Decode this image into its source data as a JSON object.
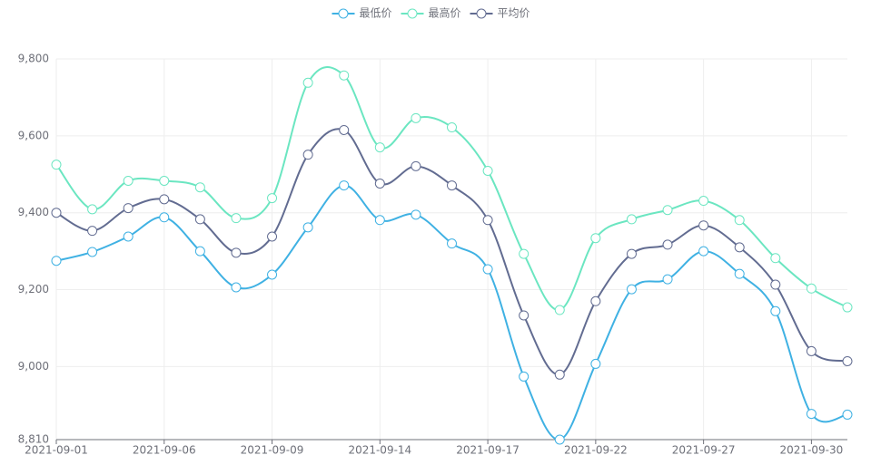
{
  "chart_data": {
    "type": "line",
    "categories": [
      "2021-09-01",
      null,
      null,
      "2021-09-06",
      null,
      null,
      "2021-09-09",
      null,
      null,
      "2021-09-14",
      null,
      null,
      "2021-09-17",
      null,
      null,
      "2021-09-22",
      null,
      null,
      "2021-09-27",
      null,
      null,
      "2021-09-30",
      null
    ],
    "series": [
      {
        "name": "最低价",
        "color": "#3fb1e3",
        "values": [
          9275,
          9298,
          9338,
          9388,
          9300,
          9206,
          9239,
          9362,
          9471,
          9381,
          9395,
          9320,
          9253,
          8974,
          8810,
          9007,
          9201,
          9227,
          9300,
          9241,
          9144,
          8877,
          8875
        ]
      },
      {
        "name": "最高价",
        "color": "#6be6c1",
        "values": [
          9525,
          9409,
          9483,
          9483,
          9466,
          9386,
          9438,
          9738,
          9757,
          9570,
          9646,
          9622,
          9509,
          9293,
          9147,
          9334,
          9383,
          9407,
          9431,
          9381,
          9282,
          9203,
          9154
        ]
      },
      {
        "name": "平均价",
        "color": "#626c91",
        "values": [
          9400,
          9353,
          9412,
          9435,
          9383,
          9296,
          9338,
          9551,
          9615,
          9476,
          9521,
          9471,
          9381,
          9133,
          8979,
          9170,
          9293,
          9317,
          9367,
          9310,
          9213,
          9040,
          9014
        ]
      }
    ],
    "ylim": [
      8810,
      9800
    ],
    "yticks": [
      {
        "value": 8810,
        "label": "8,810"
      },
      {
        "value": 9000,
        "label": "9,000"
      },
      {
        "value": 9200,
        "label": "9,200"
      },
      {
        "value": 9400,
        "label": "9,400"
      },
      {
        "value": 9600,
        "label": "9,600"
      },
      {
        "value": 9800,
        "label": "9,800"
      }
    ],
    "grid": true,
    "legend": "top"
  }
}
